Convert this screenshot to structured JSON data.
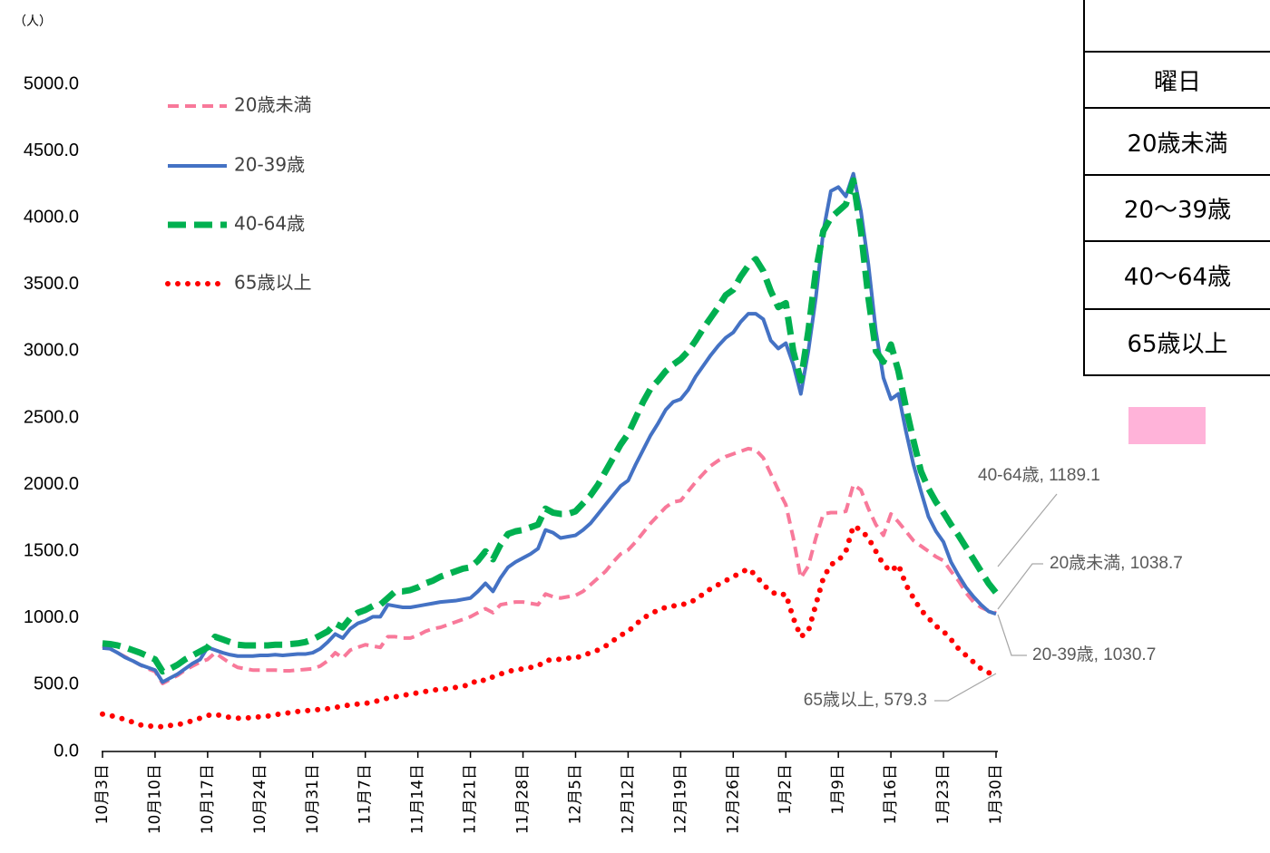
{
  "chart_data": {
    "type": "line",
    "y_unit": "（人）",
    "categories": [
      "10月3日",
      null,
      null,
      null,
      null,
      null,
      null,
      "10月10日",
      null,
      null,
      null,
      null,
      null,
      null,
      "10月17日",
      null,
      null,
      null,
      null,
      null,
      null,
      "10月24日",
      null,
      null,
      null,
      null,
      null,
      null,
      "10月31日",
      null,
      null,
      null,
      null,
      null,
      null,
      "11月7日",
      null,
      null,
      null,
      null,
      null,
      null,
      "11月14日",
      null,
      null,
      null,
      null,
      null,
      null,
      "11月21日",
      null,
      null,
      null,
      null,
      null,
      null,
      "11月28日",
      null,
      null,
      null,
      null,
      null,
      null,
      "12月5日",
      null,
      null,
      null,
      null,
      null,
      null,
      "12月12日",
      null,
      null,
      null,
      null,
      null,
      null,
      "12月19日",
      null,
      null,
      null,
      null,
      null,
      null,
      "12月26日",
      null,
      null,
      null,
      null,
      null,
      null,
      "1月2日",
      null,
      null,
      null,
      null,
      null,
      null,
      "1月9日",
      null,
      null,
      null,
      null,
      null,
      null,
      "1月16日",
      null,
      null,
      null,
      null,
      null,
      null,
      "1月23日",
      null,
      null,
      null,
      null,
      null,
      null,
      "1月30日"
    ],
    "ylim": [
      0,
      5000
    ],
    "yticks": [
      {
        "value": 0,
        "label": "0.0"
      },
      {
        "value": 500,
        "label": "500.0"
      },
      {
        "value": 1000,
        "label": "1000.0"
      },
      {
        "value": 1500,
        "label": "1500.0"
      },
      {
        "value": 2000,
        "label": "2000.0"
      },
      {
        "value": 2500,
        "label": "2500.0"
      },
      {
        "value": 3000,
        "label": "3000.0"
      },
      {
        "value": 3500,
        "label": "3500.0"
      },
      {
        "value": 4000,
        "label": "4000.0"
      },
      {
        "value": 4500,
        "label": "4500.0"
      },
      {
        "value": 5000,
        "label": "5000.0"
      }
    ],
    "grid": false,
    "legend": "top-left",
    "series": [
      {
        "name": "20歳未満",
        "color": "#f8799a",
        "style": "dashed",
        "end_label": "20歳未満, 1038.7",
        "values": [
          790,
          770,
          740,
          710,
          680,
          650,
          620,
          600,
          510,
          540,
          570,
          610,
          640,
          670,
          690,
          740,
          700,
          660,
          630,
          620,
          610,
          610,
          610,
          610,
          605,
          605,
          610,
          615,
          620,
          640,
          680,
          740,
          700,
          760,
          780,
          800,
          790,
          780,
          860,
          860,
          850,
          850,
          870,
          900,
          920,
          930,
          950,
          970,
          990,
          1010,
          1040,
          1070,
          1040,
          1100,
          1110,
          1120,
          1120,
          1110,
          1100,
          1180,
          1160,
          1150,
          1160,
          1170,
          1200,
          1250,
          1300,
          1350,
          1420,
          1480,
          1510,
          1570,
          1640,
          1710,
          1770,
          1830,
          1870,
          1880,
          1950,
          2020,
          2080,
          2140,
          2180,
          2210,
          2230,
          2250,
          2270,
          2260,
          2200,
          2080,
          1960,
          1850,
          1600,
          1300,
          1390,
          1600,
          1780,
          1790,
          1790,
          1800,
          2000,
          1960,
          1820,
          1700,
          1620,
          1780,
          1720,
          1650,
          1580,
          1540,
          1500,
          1460,
          1430,
          1350,
          1280,
          1190,
          1120,
          1080,
          1055,
          1038.7
        ]
      },
      {
        "name": "20-39歳",
        "color": "#4472c4",
        "style": "solid",
        "end_label": "20-39歳, 1030.7",
        "values": [
          775,
          770,
          740,
          705,
          680,
          650,
          630,
          610,
          520,
          550,
          580,
          620,
          660,
          690,
          780,
          760,
          740,
          725,
          715,
          715,
          715,
          720,
          720,
          725,
          720,
          725,
          730,
          730,
          740,
          770,
          820,
          880,
          850,
          920,
          960,
          980,
          1010,
          1010,
          1100,
          1090,
          1080,
          1080,
          1090,
          1100,
          1110,
          1120,
          1125,
          1130,
          1140,
          1150,
          1200,
          1260,
          1200,
          1300,
          1380,
          1420,
          1450,
          1480,
          1520,
          1660,
          1640,
          1600,
          1610,
          1620,
          1660,
          1710,
          1780,
          1850,
          1920,
          1990,
          2030,
          2150,
          2260,
          2370,
          2460,
          2560,
          2620,
          2640,
          2710,
          2810,
          2890,
          2970,
          3040,
          3100,
          3140,
          3220,
          3280,
          3280,
          3240,
          3080,
          3020,
          3060,
          2900,
          2680,
          3000,
          3400,
          3900,
          4200,
          4230,
          4160,
          4330,
          4050,
          3650,
          3150,
          2800,
          2640,
          2680,
          2400,
          2150,
          1950,
          1760,
          1650,
          1570,
          1420,
          1320,
          1230,
          1160,
          1100,
          1050,
          1030.7
        ]
      },
      {
        "name": "40-64歳",
        "color": "#00b050",
        "style": "thick-dashed",
        "end_label": "40-64歳, 1189.1",
        "values": [
          810,
          805,
          795,
          780,
          760,
          740,
          715,
          690,
          600,
          620,
          650,
          690,
          720,
          750,
          780,
          860,
          840,
          820,
          800,
          795,
          795,
          795,
          795,
          800,
          800,
          805,
          810,
          820,
          840,
          870,
          900,
          960,
          930,
          1000,
          1040,
          1060,
          1090,
          1100,
          1150,
          1200,
          1200,
          1210,
          1230,
          1260,
          1280,
          1310,
          1330,
          1350,
          1370,
          1380,
          1430,
          1500,
          1440,
          1550,
          1630,
          1650,
          1660,
          1680,
          1700,
          1820,
          1790,
          1780,
          1780,
          1800,
          1860,
          1920,
          2000,
          2100,
          2200,
          2300,
          2380,
          2500,
          2620,
          2720,
          2780,
          2850,
          2900,
          2940,
          3000,
          3080,
          3170,
          3250,
          3330,
          3420,
          3460,
          3560,
          3640,
          3690,
          3600,
          3450,
          3330,
          3360,
          3000,
          2780,
          3150,
          3600,
          3900,
          4000,
          4050,
          4100,
          4280,
          3900,
          3400,
          3000,
          2920,
          3050,
          2850,
          2580,
          2330,
          2100,
          1970,
          1870,
          1790,
          1700,
          1620,
          1530,
          1440,
          1350,
          1260,
          1189.1
        ]
      },
      {
        "name": "65歳以上",
        "color": "#ff0000",
        "style": "dotted",
        "end_label": "65歳以上, 579.3",
        "values": [
          280,
          270,
          255,
          240,
          220,
          200,
          190,
          190,
          185,
          195,
          200,
          215,
          230,
          250,
          270,
          280,
          265,
          255,
          250,
          250,
          255,
          260,
          265,
          275,
          285,
          290,
          300,
          305,
          310,
          315,
          320,
          330,
          340,
          350,
          355,
          360,
          370,
          385,
          400,
          410,
          420,
          430,
          440,
          450,
          460,
          465,
          470,
          480,
          490,
          500,
          540,
          530,
          560,
          580,
          600,
          610,
          620,
          630,
          640,
          680,
          690,
          690,
          700,
          700,
          720,
          740,
          760,
          790,
          830,
          870,
          900,
          950,
          1000,
          1030,
          1060,
          1080,
          1090,
          1100,
          1110,
          1140,
          1180,
          1220,
          1250,
          1280,
          1310,
          1340,
          1370,
          1320,
          1250,
          1200,
          1170,
          1180,
          1000,
          860,
          900,
          1100,
          1300,
          1400,
          1430,
          1500,
          1690,
          1660,
          1600,
          1500,
          1400,
          1350,
          1400,
          1250,
          1150,
          1060,
          1000,
          940,
          900,
          840,
          770,
          720,
          670,
          620,
          590,
          579.3
        ]
      }
    ]
  },
  "table": {
    "rows": [
      "",
      "曜日",
      "20歳未満",
      "20～39歳",
      "40～64歳",
      "65歳以上"
    ]
  }
}
